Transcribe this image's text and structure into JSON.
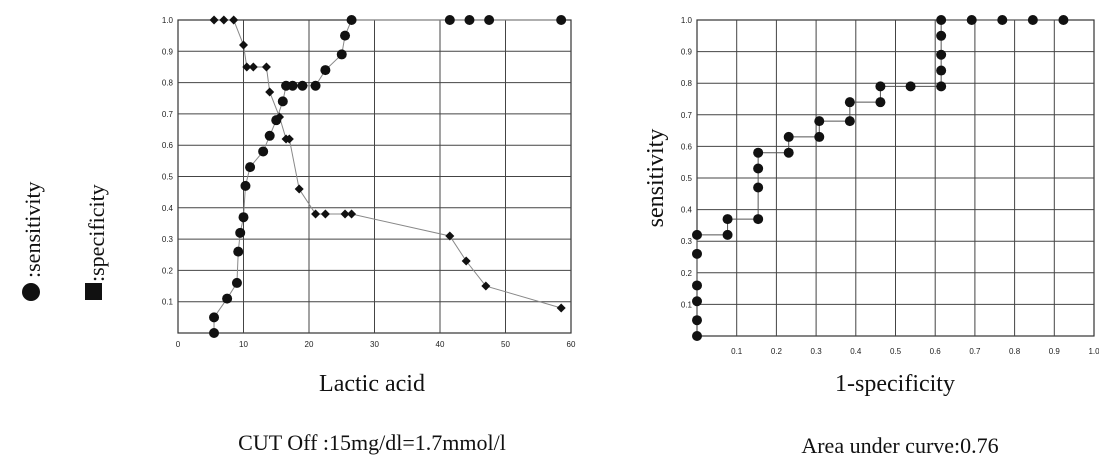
{
  "legend": {
    "sensitivity_label": ":sensitivity",
    "specificity_label": ":specificity"
  },
  "chart_data": [
    {
      "type": "line",
      "title": "",
      "xlabel": "Lactic acid",
      "ylabel": "",
      "caption": "CUT Off :15mg/dl=1.7mmol/l",
      "xlim": [
        0,
        60
      ],
      "ylim": [
        0,
        1.0
      ],
      "xticks": [
        "0",
        "10",
        "20",
        "30",
        "40",
        "50",
        "60"
      ],
      "yticks": [
        "0.1",
        "0.2",
        "0.3",
        "0.4",
        "0.5",
        "0.6",
        "0.7",
        "0.8",
        "0.9",
        "1.0"
      ],
      "grid": true,
      "series": [
        {
          "name": "sensitivity",
          "marker": "circle",
          "x": [
            5.5,
            5.5,
            7.5,
            9.0,
            9.2,
            9.5,
            10.0,
            10.3,
            11.0,
            13.0,
            14.0,
            15.0,
            16.0,
            16.5,
            17.5,
            19.0,
            21.0,
            22.5,
            25.0,
            25.5,
            26.5,
            41.5,
            44.5,
            47.5,
            58.5
          ],
          "y": [
            0.0,
            0.05,
            0.11,
            0.16,
            0.26,
            0.32,
            0.37,
            0.47,
            0.53,
            0.58,
            0.63,
            0.68,
            0.74,
            0.79,
            0.79,
            0.79,
            0.79,
            0.84,
            0.89,
            0.95,
            1.0,
            1.0,
            1.0,
            1.0,
            1.0
          ]
        },
        {
          "name": "specificity",
          "marker": "diamond",
          "x": [
            5.5,
            7.0,
            8.5,
            10.0,
            10.5,
            11.5,
            13.5,
            14.0,
            15.5,
            16.5,
            17.0,
            18.5,
            21.0,
            22.5,
            25.5,
            26.5,
            41.5,
            44.0,
            47.0,
            58.5
          ],
          "y": [
            1.0,
            1.0,
            1.0,
            0.92,
            0.85,
            0.85,
            0.85,
            0.77,
            0.69,
            0.62,
            0.62,
            0.46,
            0.38,
            0.38,
            0.38,
            0.38,
            0.31,
            0.23,
            0.15,
            0.08
          ]
        }
      ]
    },
    {
      "type": "line",
      "title": "",
      "xlabel": "1-specificity",
      "ylabel": "sensitivity",
      "caption": "Area under curve:0.76",
      "xlim": [
        0,
        1.0
      ],
      "ylim": [
        0,
        1.0
      ],
      "xticks": [
        "0.1",
        "0.2",
        "0.3",
        "0.4",
        "0.5",
        "0.6",
        "0.7",
        "0.8",
        "0.9",
        "1.0"
      ],
      "yticks": [
        "0.1",
        "0.2",
        "0.3",
        "0.4",
        "0.5",
        "0.6",
        "0.7",
        "0.8",
        "0.9",
        "1.0"
      ],
      "grid": true,
      "series": [
        {
          "name": "",
          "marker": "circle",
          "x": [
            0.0,
            0.0,
            0.0,
            0.0,
            0.0,
            0.0,
            0.077,
            0.077,
            0.154,
            0.154,
            0.154,
            0.154,
            0.231,
            0.231,
            0.308,
            0.308,
            0.385,
            0.385,
            0.462,
            0.462,
            0.538,
            0.615,
            0.615,
            0.615,
            0.615,
            0.615,
            0.692,
            0.769,
            0.846,
            0.923
          ],
          "y": [
            0.0,
            0.05,
            0.11,
            0.16,
            0.26,
            0.32,
            0.32,
            0.37,
            0.37,
            0.47,
            0.53,
            0.58,
            0.58,
            0.63,
            0.63,
            0.68,
            0.68,
            0.74,
            0.74,
            0.79,
            0.79,
            0.79,
            0.84,
            0.89,
            0.95,
            1.0,
            1.0,
            1.0,
            1.0,
            1.0
          ]
        }
      ]
    }
  ]
}
